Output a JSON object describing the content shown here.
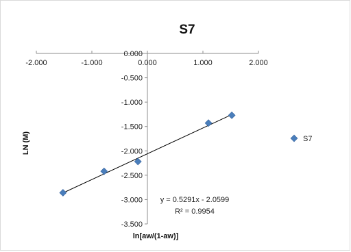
{
  "chart_data": {
    "type": "scatter",
    "title": "S7",
    "xlabel": "ln[aw/(1-aw)]",
    "ylabel": "LN (M)",
    "xlim": [
      -2.0,
      2.0
    ],
    "ylim": [
      -3.5,
      0.0
    ],
    "x_ticks": [
      "-2.000",
      "-1.000",
      "0.000",
      "1.000",
      "2.000"
    ],
    "y_ticks": [
      "0.000",
      "-0.500",
      "-1.000",
      "-1.500",
      "-2.000",
      "-2.500",
      "-3.000",
      "-3.500"
    ],
    "series": [
      {
        "name": "S7",
        "color": "#4a7ebb",
        "marker": "diamond",
        "points": [
          {
            "x": -1.52,
            "y": -2.86
          },
          {
            "x": -0.78,
            "y": -2.42
          },
          {
            "x": -0.17,
            "y": -2.22
          },
          {
            "x": 1.1,
            "y": -1.43
          },
          {
            "x": 1.52,
            "y": -1.27
          }
        ]
      }
    ],
    "trendline": {
      "type": "linear",
      "slope": 0.5291,
      "intercept": -2.0599,
      "x_range": [
        -1.52,
        1.52
      ],
      "color": "#000000"
    },
    "annotations": {
      "equation": "y = 0.5291x - 2.0599",
      "r_squared": "R² = 0.9954"
    },
    "legend": {
      "position": "right",
      "label": "S7"
    },
    "grid": false
  }
}
